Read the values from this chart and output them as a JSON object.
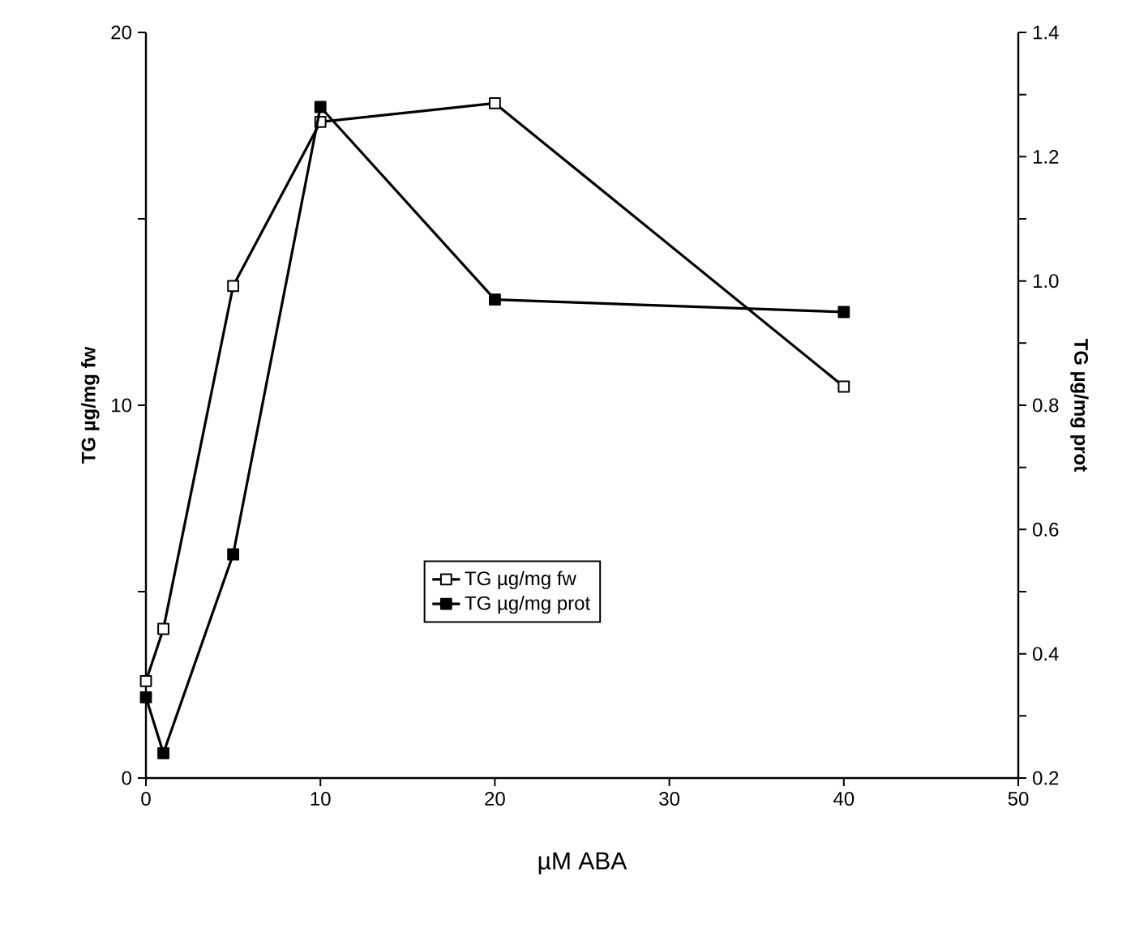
{
  "chart_data": {
    "type": "line",
    "x": [
      0,
      1,
      5,
      10,
      20,
      40
    ],
    "series": [
      {
        "name": "TG µg/mg fw",
        "color": "#000000",
        "marker": "square",
        "values": [
          2.6,
          4.0,
          13.2,
          17.6,
          18.1,
          10.5
        ]
      },
      {
        "name": "TG µg/mg prot",
        "color": "#000000",
        "marker": "square",
        "axis": "y2",
        "values": [
          0.33,
          0.24,
          0.56,
          1.28,
          0.97,
          0.95
        ]
      }
    ],
    "xlabel": "µM ABA",
    "ylabel": "TG µg/mg fw",
    "y2label": "TG µg/mg prot",
    "xlim": [
      0,
      50
    ],
    "xticks": [
      0,
      10,
      20,
      30,
      40,
      50
    ],
    "ylim": [
      0,
      20
    ],
    "yticks": [
      0,
      {
        "value": 5,
        "label": null
      },
      10,
      {
        "value": 15,
        "label": null
      },
      20
    ],
    "y2lim": [
      0.2,
      1.4
    ],
    "y2ticks": [
      {
        "value": 0.2,
        "label": "0.2"
      },
      {
        "value": 0.3,
        "label": null
      },
      {
        "value": 0.4,
        "label": "0.4"
      },
      {
        "value": 0.5,
        "label": null
      },
      {
        "value": 0.6,
        "label": "0.6"
      },
      {
        "value": 0.7,
        "label": null
      },
      {
        "value": 0.8,
        "label": "0.8"
      },
      {
        "value": 0.9,
        "label": null
      },
      {
        "value": 1.0,
        "label": "1.0"
      },
      {
        "value": 1.1,
        "label": null
      },
      {
        "value": 1.2,
        "label": "1.2"
      },
      {
        "value": 1.3,
        "label": null
      },
      {
        "value": 1.4,
        "label": "1.4"
      }
    ],
    "grid": false,
    "legend": "center",
    "line_style": "solid"
  }
}
